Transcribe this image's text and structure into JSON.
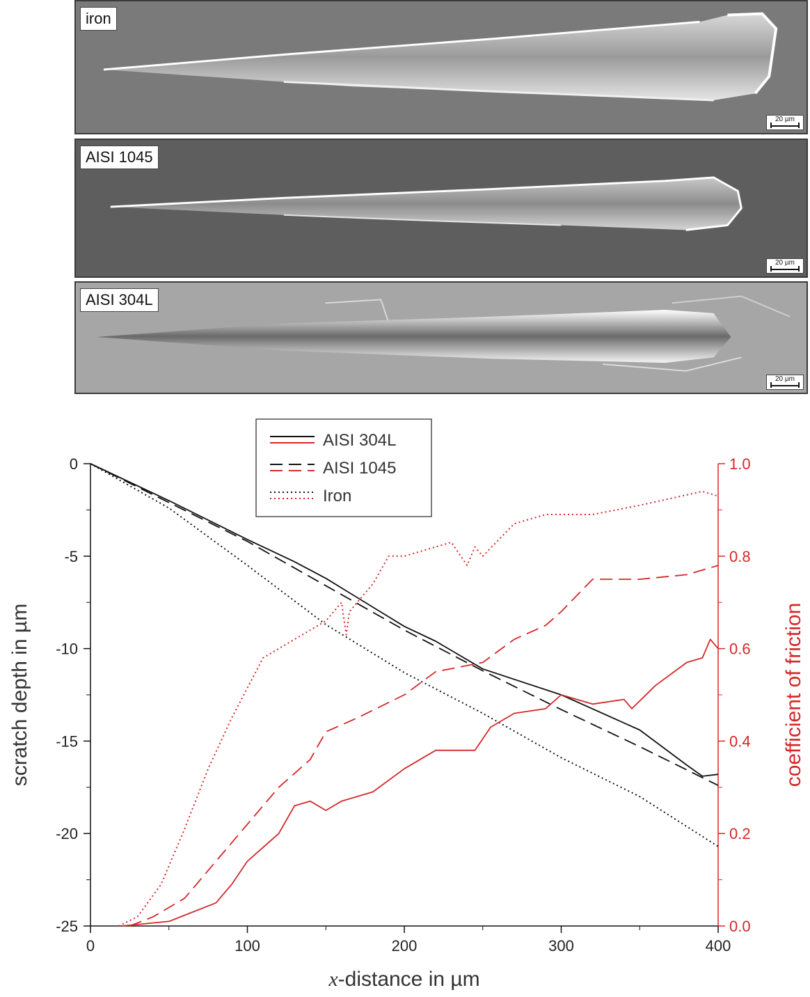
{
  "panels": [
    {
      "label": "iron",
      "scale": "20 µm"
    },
    {
      "label": "AISI 1045",
      "scale": "20 µm"
    },
    {
      "label": "AISI 304L",
      "scale": "20 µm"
    }
  ],
  "colors": {
    "depth": "#111111",
    "friction": "#d62728"
  },
  "chart_data": {
    "type": "line",
    "xlabel_var": "x",
    "xlabel_rest": "-distance in µm",
    "ylabel": "scratch depth in µm",
    "y2label": "coefficient of friction",
    "xlim": [
      0,
      400
    ],
    "ylim": [
      -25,
      0
    ],
    "y2lim": [
      0,
      1
    ],
    "xticks": [
      0,
      100,
      200,
      300,
      400
    ],
    "yticks": [
      0,
      -5,
      -10,
      -15,
      -20,
      -25
    ],
    "y2ticks": [
      "0.0",
      "0.2",
      "0.4",
      "0.6",
      "0.8",
      "1.0"
    ],
    "legend": [
      "AISI 304L",
      "AISI 1045",
      "Iron"
    ],
    "series": [
      {
        "name": "AISI 304L",
        "axis": "left",
        "style": "solid",
        "x": [
          0,
          50,
          100,
          130,
          150,
          200,
          220,
          250,
          300,
          350,
          380,
          390,
          400
        ],
        "y": [
          0,
          -2.0,
          -4.1,
          -5.3,
          -6.2,
          -8.8,
          -9.6,
          -11.1,
          -12.5,
          -14.4,
          -16.3,
          -16.9,
          -16.8
        ]
      },
      {
        "name": "AISI 1045",
        "axis": "left",
        "style": "dashed",
        "x": [
          0,
          50,
          100,
          150,
          200,
          250,
          300,
          350,
          400
        ],
        "y": [
          0,
          -2.1,
          -4.2,
          -6.6,
          -9.0,
          -11.2,
          -13.3,
          -15.3,
          -17.4
        ]
      },
      {
        "name": "Iron",
        "axis": "left",
        "style": "dotted",
        "x": [
          0,
          50,
          100,
          150,
          200,
          250,
          300,
          350,
          400
        ],
        "y": [
          0,
          -2.4,
          -5.5,
          -8.7,
          -11.3,
          -13.5,
          -15.9,
          -18.0,
          -20.7
        ]
      },
      {
        "name": "AISI 304L",
        "axis": "right",
        "style": "solid",
        "x": [
          20,
          50,
          80,
          90,
          100,
          120,
          130,
          140,
          150,
          160,
          180,
          200,
          220,
          245,
          255,
          270,
          290,
          300,
          320,
          340,
          345,
          360,
          380,
          390,
          395,
          400
        ],
        "y": [
          0,
          0.01,
          0.05,
          0.09,
          0.14,
          0.2,
          0.26,
          0.27,
          0.25,
          0.27,
          0.29,
          0.34,
          0.38,
          0.38,
          0.43,
          0.46,
          0.47,
          0.5,
          0.48,
          0.49,
          0.47,
          0.52,
          0.57,
          0.58,
          0.62,
          0.6
        ]
      },
      {
        "name": "AISI 1045",
        "axis": "right",
        "style": "dashed",
        "x": [
          25,
          40,
          60,
          80,
          100,
          120,
          140,
          150,
          170,
          200,
          220,
          250,
          270,
          290,
          300,
          320,
          350,
          380,
          400
        ],
        "y": [
          0,
          0.02,
          0.06,
          0.14,
          0.22,
          0.3,
          0.36,
          0.42,
          0.45,
          0.5,
          0.55,
          0.57,
          0.62,
          0.65,
          0.68,
          0.75,
          0.75,
          0.76,
          0.78
        ]
      },
      {
        "name": "Iron",
        "axis": "right",
        "style": "dotted",
        "x": [
          18,
          30,
          45,
          60,
          75,
          90,
          110,
          130,
          150,
          160,
          163,
          165,
          170,
          180,
          190,
          200,
          230,
          240,
          245,
          250,
          270,
          290,
          320,
          350,
          390,
          400
        ],
        "y": [
          0,
          0.02,
          0.09,
          0.21,
          0.34,
          0.45,
          0.58,
          0.62,
          0.66,
          0.7,
          0.63,
          0.68,
          0.7,
          0.74,
          0.8,
          0.8,
          0.83,
          0.78,
          0.82,
          0.8,
          0.87,
          0.89,
          0.89,
          0.91,
          0.94,
          0.93
        ]
      }
    ]
  }
}
